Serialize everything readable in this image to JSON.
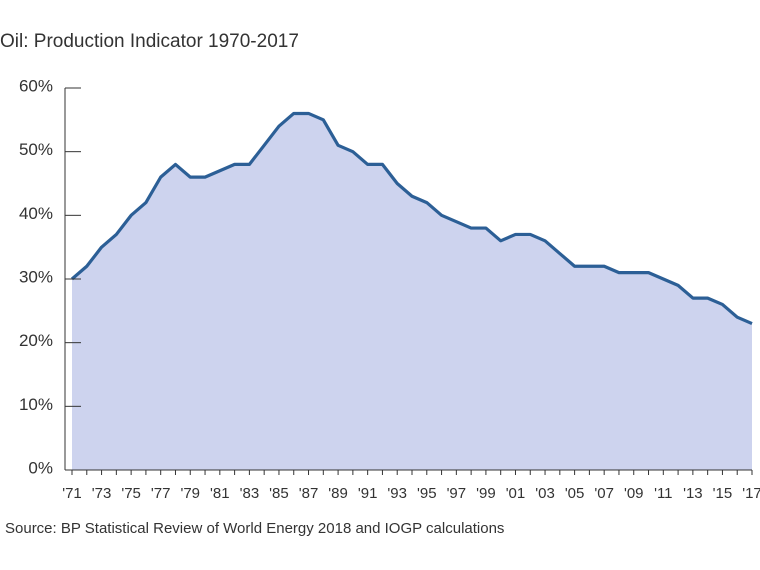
{
  "chart_data": {
    "type": "area",
    "title": "Oil: Production Indicator 1970-2017",
    "source": "Source: BP Statistical Review of World Energy 2018 and IOGP calculations",
    "categories": [
      "'71",
      null,
      "'73",
      null,
      "'75",
      null,
      "'77",
      null,
      "'79",
      null,
      "'81",
      null,
      "'83",
      null,
      "'85",
      null,
      "'87",
      null,
      "'89",
      null,
      "'91",
      null,
      "'93",
      null,
      "'95",
      null,
      "'97",
      null,
      "'99",
      null,
      "'01",
      null,
      "'03",
      null,
      "'05",
      null,
      "'07",
      null,
      "'09",
      null,
      "'11",
      null,
      "'13",
      null,
      "'15",
      null,
      "'17"
    ],
    "values": [
      30,
      32,
      35,
      37,
      40,
      42,
      46,
      48,
      46,
      46,
      47,
      48,
      48,
      51,
      54,
      56,
      56,
      55,
      51,
      50,
      48,
      48,
      45,
      43,
      42,
      40,
      39,
      38,
      38,
      36,
      37,
      37,
      36,
      34,
      32,
      32,
      32,
      31,
      31,
      31,
      30,
      29,
      27,
      27,
      26,
      24,
      23
    ],
    "color": "#2c5f96",
    "fill": "#cdd3ee",
    "ylim": [
      0,
      60
    ],
    "yticks": [
      {
        "value": 0,
        "label": "0%"
      },
      {
        "value": 10,
        "label": "10%"
      },
      {
        "value": 20,
        "label": "20%"
      },
      {
        "value": 30,
        "label": "30%"
      },
      {
        "value": 40,
        "label": "40%"
      },
      {
        "value": 50,
        "label": "50%"
      },
      {
        "value": 60,
        "label": "60%"
      }
    ]
  }
}
